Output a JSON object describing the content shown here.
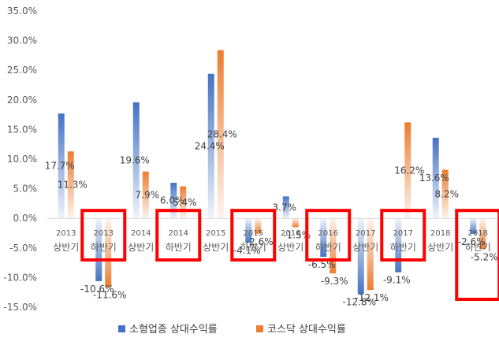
{
  "chart_data": {
    "type": "bar",
    "categories": [
      [
        "2013",
        "상반기"
      ],
      [
        "2013",
        "하반기"
      ],
      [
        "2014",
        "상반기"
      ],
      [
        "2014",
        "하반기"
      ],
      [
        "2015",
        "상반기"
      ],
      [
        "2015",
        "하반기"
      ],
      [
        "2016",
        "상반기"
      ],
      [
        "2016",
        "하반기"
      ],
      [
        "2017",
        "상반기"
      ],
      [
        "2017",
        "하반기"
      ],
      [
        "2018",
        "상반기"
      ],
      [
        "2018",
        "하반기"
      ]
    ],
    "series": [
      {
        "name": "소형업종 상대수익률",
        "color": "#4472C4",
        "values": [
          17.7,
          -10.6,
          19.6,
          6.0,
          24.4,
          -4.1,
          3.7,
          -6.5,
          -12.8,
          -9.1,
          13.6,
          -2.6
        ],
        "labels": [
          "17.7%",
          "-10.6%",
          "19.6%",
          "6.0%",
          "24.4%",
          "-4.1%",
          "3.7%",
          "-6.5%",
          "-12.8%",
          "-9.1%",
          "13.6%",
          "-2.6%"
        ]
      },
      {
        "name": "코스닥 상대수익률",
        "color": "#ED7D31",
        "values": [
          11.3,
          -11.6,
          7.9,
          5.4,
          28.4,
          -2.6,
          -1.5,
          -9.3,
          -12.1,
          16.2,
          8.2,
          -5.2
        ],
        "labels": [
          "11.3%",
          "-11.6%",
          "7.9%",
          "5.4%",
          "28.4%",
          "-2.6%",
          "-1.5%",
          "-9.3%",
          "-12.1%",
          "16.2%",
          "8.2%",
          "-5.2%"
        ]
      }
    ],
    "ylim": [
      -15,
      35
    ],
    "yticks": [
      -15,
      -10,
      -5,
      0,
      5,
      10,
      15,
      20,
      25,
      30,
      35
    ],
    "ytick_labels": [
      "-15.0%",
      "-10.0%",
      "-5.0%",
      "0.0%",
      "5.0%",
      "10.0%",
      "15.0%",
      "20.0%",
      "25.0%",
      "30.0%",
      "35.0%"
    ],
    "grid": false,
    "legend_position": "bottom",
    "highlighted_categories": [
      1,
      3,
      5,
      7,
      9,
      11
    ],
    "highlight_color": "#FF0000"
  }
}
